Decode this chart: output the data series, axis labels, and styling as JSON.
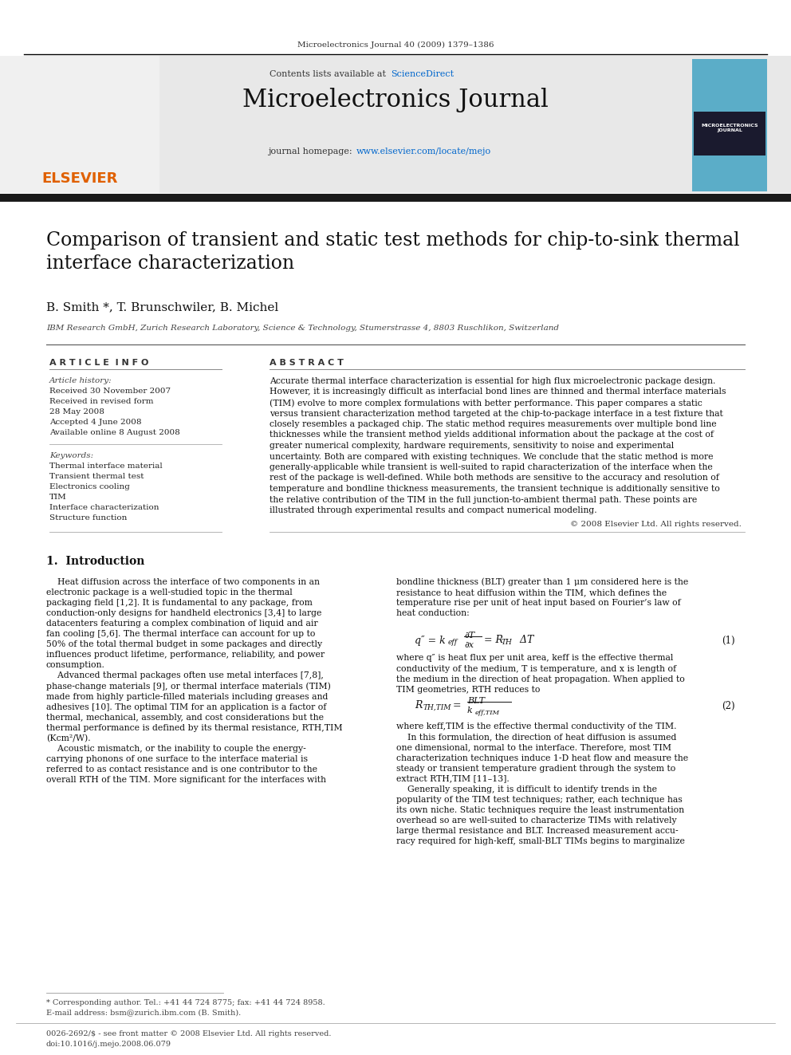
{
  "page_width": 9.92,
  "page_height": 13.23,
  "bg_color": "#ffffff",
  "journal_ref": "Microelectronics Journal 40 (2009) 1379–1386",
  "journal_title": "Microelectronics Journal",
  "contents_text": "Contents lists available at ",
  "sciencedirect_text": "ScienceDirect",
  "sciencedirect_color": "#0066cc",
  "homepage_text": "journal homepage: ",
  "homepage_url": "www.elsevier.com/locate/mejo",
  "homepage_url_color": "#0066cc",
  "header_bg_color": "#e8e8e8",
  "black_bar_color": "#1a1a1a",
  "paper_title": "Comparison of transient and static test methods for chip-to-sink thermal\ninterface characterization",
  "authors": "B. Smith *, T. Brunschwiler, B. Michel",
  "affiliation": "IBM Research GmbH, Zurich Research Laboratory, Science & Technology, Stumerstrasse 4, 8803 Ruschlikon, Switzerland",
  "article_info_header": "A R T I C L E  I N F O",
  "abstract_header": "A B S T R A C T",
  "article_history_label": "Article history:",
  "article_history": [
    "Received 30 November 2007",
    "Received in revised form",
    "28 May 2008",
    "Accepted 4 June 2008",
    "Available online 8 August 2008"
  ],
  "keywords_label": "Keywords:",
  "keywords": [
    "Thermal interface material",
    "Transient thermal test",
    "Electronics cooling",
    "TIM",
    "Interface characterization",
    "Structure function"
  ],
  "abstract_text": "Accurate thermal interface characterization is essential for high flux microelectronic package design. However, it is increasingly difficult as interfacial bond lines are thinned and thermal interface materials (TIM) evolve to more complex formulations with better performance. This paper compares a static versus transient characterization method targeted at the chip-to-package interface in a test fixture that closely resembles a packaged chip. The static method requires measurements over multiple bond line thicknesses while the transient method yields additional information about the package at the cost of greater numerical complexity, hardware requirements, sensitivity to noise and experimental uncertainty. Both are compared with existing techniques. We conclude that the static method is more generally-applicable while transient is well-suited to rapid characterization of the interface when the rest of the package is well-defined. While both methods are sensitive to the accuracy and resolution of temperature and bondline thickness measurements, the transient technique is additionally sensitive to the relative contribution of the TIM in the full junction-to-ambient thermal path. These points are illustrated through experimental results and compact numerical modeling.",
  "copyright_text": "© 2008 Elsevier Ltd. All rights reserved.",
  "section1_title": "1.  Introduction",
  "left_col_text": "    Heat diffusion across the interface of two components in an\nelectronic package is a well-studied topic in the thermal\npackaging field [1,2]. It is fundamental to any package, from\nconduction-only designs for handheld electronics [3,4] to large\ndatacenters featuring a complex combination of liquid and air\nfan cooling [5,6]. The thermal interface can account for up to\n50% of the total thermal budget in some packages and directly\ninfluences product lifetime, performance, reliability, and power\nconsumption.\n    Advanced thermal packages often use metal interfaces [7,8],\nphase-change materials [9], or thermal interface materials (TIM)\nmade from highly particle-filled materials including greases and\nadhesives [10]. The optimal TIM for an application is a factor of\nthermal, mechanical, assembly, and cost considerations but the\nthermal performance is defined by its thermal resistance, RTH,TIM\n(Kcm²/W).\n    Acoustic mismatch, or the inability to couple the energy-\ncarrying phonons of one surface to the interface material is\nreferred to as contact resistance and is one contributor to the\noverall RTH of the TIM. More significant for the interfaces with",
  "right_col_text1": "bondline thickness (BLT) greater than 1 μm considered here is the\nresistance to heat diffusion within the TIM, which defines the\ntemperature rise per unit of heat input based on Fourier’s law of\nheat conduction:",
  "right_col_text2": "where q″ is heat flux per unit area, keff is the effective thermal\nconductivity of the medium, T is temperature, and x is length of\nthe medium in the direction of heat propagation. When applied to\nTIM geometries, RTH reduces to",
  "right_col_text3": "where keff,TIM is the effective thermal conductivity of the TIM.\n    In this formulation, the direction of heat diffusion is assumed\none dimensional, normal to the interface. Therefore, most TIM\ncharacterization techniques induce 1-D heat flow and measure the\nsteady or transient temperature gradient through the system to\nextract RTH,TIM [11–13].\n    Generally speaking, it is difficult to identify trends in the\npopularity of the TIM test techniques; rather, each technique has\nits own niche. Static techniques require the least instrumentation\noverhead so are well-suited to characterize TIMs with relatively\nlarge thermal resistance and BLT. Increased measurement accu-\nracy required for high-keff, small-BLT TIMs begins to marginalize",
  "eq1_label": "(1)",
  "eq2_label": "(2)",
  "eq1_text": "q″ = keff ∂T/∂x = RTH ΔT",
  "eq2_text": "RTH,TIM =  BLT / keff,TIM",
  "footnote_text": "* Corresponding author. Tel.: +41 44 724 8775; fax: +41 44 724 8958.",
  "footnote_email": "E-mail address: bsm@zurich.ibm.com (B. Smith).",
  "issn_text": "0026-2692/$ - see front matter © 2008 Elsevier Ltd. All rights reserved.",
  "doi_text": "doi:10.1016/j.mejo.2008.06.079"
}
